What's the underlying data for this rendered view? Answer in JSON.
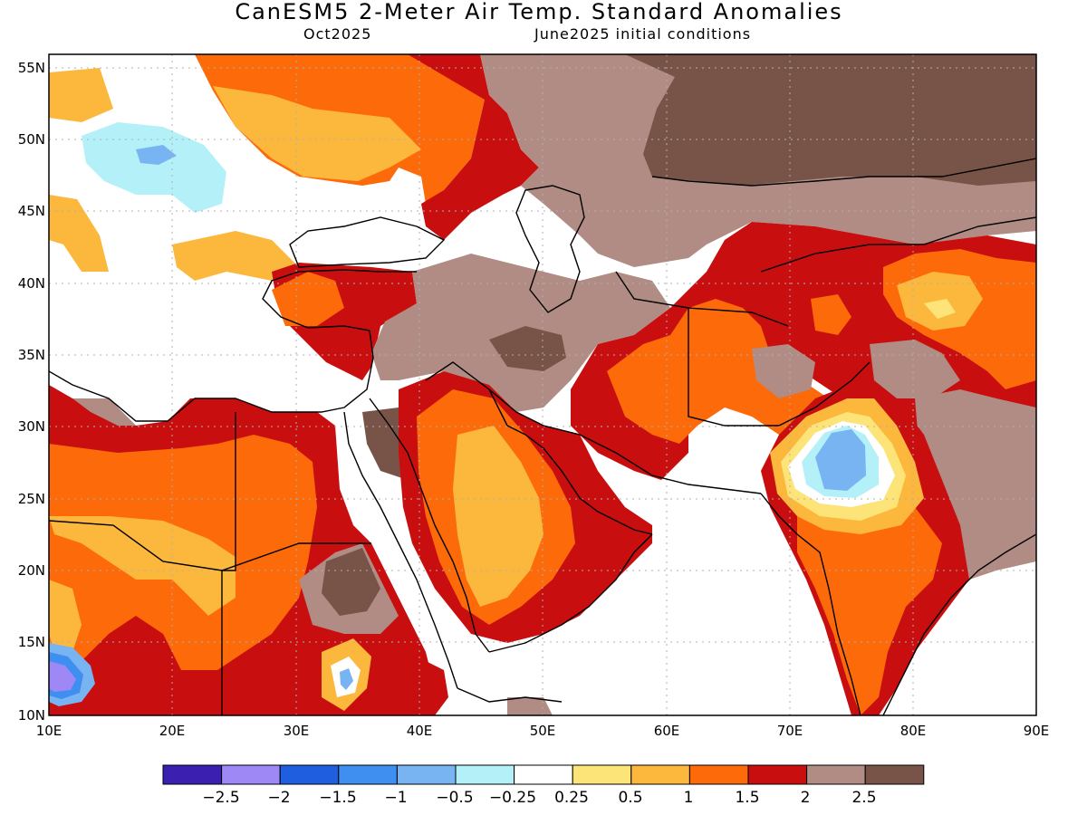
{
  "header": {
    "title": "CanESM5 2-Meter Air Temp. Standard Anomalies",
    "valid_month": "Oct2025",
    "init": "June2025 initial conditions"
  },
  "map": {
    "lon_range": [
      10,
      90
    ],
    "lat_range": [
      10,
      56
    ],
    "lon_labels": [
      "10E",
      "20E",
      "30E",
      "40E",
      "50E",
      "60E",
      "70E",
      "80E",
      "90E"
    ],
    "lat_labels": [
      "55N",
      "50N",
      "45N",
      "40N",
      "35N",
      "30N",
      "25N",
      "20N",
      "15N",
      "10N"
    ],
    "grid": true
  },
  "colorbar": {
    "colors": [
      "#3a1fb0",
      "#9d88f5",
      "#1f5ede",
      "#3f8ff0",
      "#78b4f2",
      "#b4f0f8",
      "#ffffff",
      "#fce478",
      "#fcb83c",
      "#fc6a0a",
      "#c80e0e",
      "#b08c84",
      "#785448"
    ],
    "labels": [
      "−2.5",
      "−2",
      "−1.5",
      "−1",
      "−0.5",
      "−0.25",
      "0.25",
      "0.5",
      "1",
      "1.5",
      "2",
      "2.5"
    ]
  }
}
